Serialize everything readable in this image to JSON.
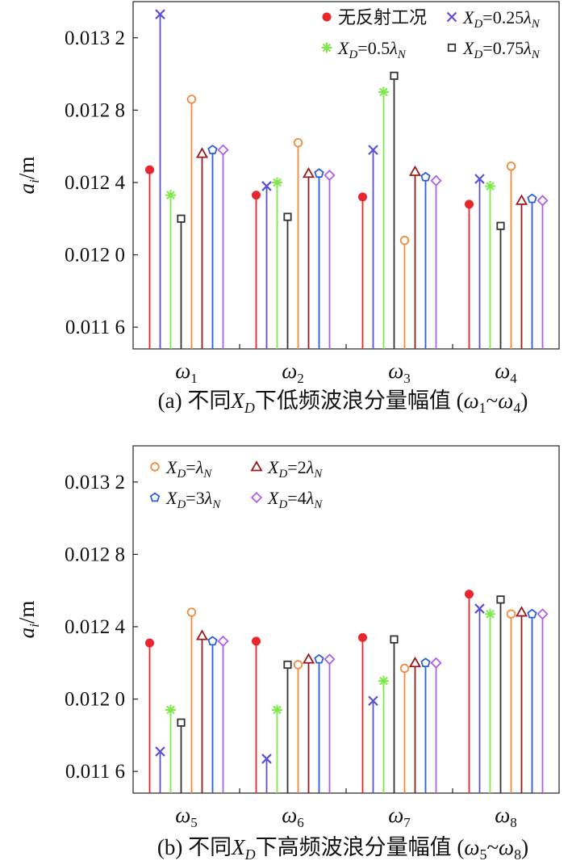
{
  "figure": {
    "chart_data": [
      {
        "type": "stem",
        "panel": "a",
        "caption": {
          "prefix": "(a) 不同",
          "xd_main": "X",
          "xd_sub": "D",
          "middle": "下低频波浪分量幅值 (",
          "w_first": "ω",
          "w_first_sub": "1",
          "tilde": "~",
          "w_last": "ω",
          "w_last_sub": "4",
          "suffix": ")"
        },
        "ylabel_main": "a",
        "ylabel_sub": "i",
        "ylabel_unit": "/m",
        "ylim": [
          0.01148,
          0.0134
        ],
        "y_ticks": [
          {
            "value": 0.0116,
            "label": "0.011 6"
          },
          {
            "value": 0.012,
            "label": "0.012 0"
          },
          {
            "value": 0.0124,
            "label": "0.012 4"
          },
          {
            "value": 0.0128,
            "label": "0.012 8"
          },
          {
            "value": 0.0132,
            "label": "0.013 2"
          }
        ],
        "categories": [
          {
            "main": "ω",
            "sub": "1"
          },
          {
            "main": "ω",
            "sub": "2"
          },
          {
            "main": "ω",
            "sub": "3"
          },
          {
            "main": "ω",
            "sub": "4"
          }
        ],
        "series": [
          {
            "key": "no_reflection",
            "values": [
              0.01247,
              0.01233,
              0.01232,
              0.01228
            ]
          },
          {
            "key": "xd_025",
            "values": [
              0.01333,
              0.01238,
              0.01258,
              0.01242
            ]
          },
          {
            "key": "xd_05",
            "values": [
              0.01233,
              0.0124,
              0.0129,
              0.01238
            ]
          },
          {
            "key": "xd_075",
            "values": [
              0.0122,
              0.01221,
              0.01299,
              0.01216
            ]
          },
          {
            "key": "xd_1",
            "values": [
              0.01286,
              0.01262,
              0.01208,
              0.01249
            ]
          },
          {
            "key": "xd_2",
            "values": [
              0.01256,
              0.01245,
              0.01246,
              0.0123
            ]
          },
          {
            "key": "xd_3",
            "values": [
              0.01258,
              0.01245,
              0.01243,
              0.01231
            ]
          },
          {
            "key": "xd_4",
            "values": [
              0.01258,
              0.01244,
              0.01241,
              0.0123
            ]
          }
        ],
        "legend": {
          "position": "top-right",
          "entries": [
            {
              "key": "no_reflection",
              "label": "无反射工况"
            },
            {
              "key": "xd_025",
              "label_main": "X",
              "label_sub": "D",
              "label_rest": "=0.25",
              "lambda": "λ",
              "lambda_sub": "N"
            },
            {
              "key": "xd_05",
              "label_main": "X",
              "label_sub": "D",
              "label_rest": "=0.5",
              "lambda": "λ",
              "lambda_sub": "N"
            },
            {
              "key": "xd_075",
              "label_main": "X",
              "label_sub": "D",
              "label_rest": "=0.75",
              "lambda": "λ",
              "lambda_sub": "N"
            }
          ]
        }
      },
      {
        "type": "stem",
        "panel": "b",
        "caption": {
          "prefix": "(b) 不同",
          "xd_main": "X",
          "xd_sub": "D",
          "middle": "下高频波浪分量幅值 (",
          "w_first": "ω",
          "w_first_sub": "5",
          "tilde": "~",
          "w_last": "ω",
          "w_last_sub": "8",
          "suffix": ")"
        },
        "ylabel_main": "a",
        "ylabel_sub": "i",
        "ylabel_unit": "/m",
        "ylim": [
          0.01148,
          0.0134
        ],
        "y_ticks": [
          {
            "value": 0.0116,
            "label": "0.011 6"
          },
          {
            "value": 0.012,
            "label": "0.012 0"
          },
          {
            "value": 0.0124,
            "label": "0.012 4"
          },
          {
            "value": 0.0128,
            "label": "0.012 8"
          },
          {
            "value": 0.0132,
            "label": "0.013 2"
          }
        ],
        "categories": [
          {
            "main": "ω",
            "sub": "5"
          },
          {
            "main": "ω",
            "sub": "6"
          },
          {
            "main": "ω",
            "sub": "7"
          },
          {
            "main": "ω",
            "sub": "8"
          }
        ],
        "series": [
          {
            "key": "no_reflection",
            "values": [
              0.01231,
              0.01232,
              0.01234,
              0.01258
            ]
          },
          {
            "key": "xd_025",
            "values": [
              0.01171,
              0.01167,
              0.01199,
              0.0125
            ]
          },
          {
            "key": "xd_05",
            "values": [
              0.01194,
              0.01194,
              0.0121,
              0.01247
            ]
          },
          {
            "key": "xd_075",
            "values": [
              0.01187,
              0.01219,
              0.01233,
              0.01255
            ]
          },
          {
            "key": "xd_1",
            "values": [
              0.01248,
              0.01219,
              0.01217,
              0.01247
            ]
          },
          {
            "key": "xd_2",
            "values": [
              0.01235,
              0.01222,
              0.0122,
              0.01248
            ]
          },
          {
            "key": "xd_3",
            "values": [
              0.01232,
              0.01222,
              0.0122,
              0.01247
            ]
          },
          {
            "key": "xd_4",
            "values": [
              0.01232,
              0.01222,
              0.0122,
              0.01247
            ]
          }
        ],
        "legend": {
          "position": "top-left",
          "entries": [
            {
              "key": "xd_1",
              "label_main": "X",
              "label_sub": "D",
              "label_rest": "=",
              "lambda": "λ",
              "lambda_sub": "N"
            },
            {
              "key": "xd_2",
              "label_main": "X",
              "label_sub": "D",
              "label_rest": "=2",
              "lambda": "λ",
              "lambda_sub": "N"
            },
            {
              "key": "xd_3",
              "label_main": "X",
              "label_sub": "D",
              "label_rest": "=3",
              "lambda": "λ",
              "lambda_sub": "N"
            },
            {
              "key": "xd_4",
              "label_main": "X",
              "label_sub": "D",
              "label_rest": "=4",
              "lambda": "λ",
              "lambda_sub": "N"
            }
          ]
        }
      }
    ],
    "series_styles": {
      "no_reflection": {
        "marker": "filled-circle",
        "color": "#e8262d"
      },
      "xd_025": {
        "marker": "cross",
        "color": "#5a4fd8"
      },
      "xd_05": {
        "marker": "asterisk",
        "color": "#7ee84a"
      },
      "xd_075": {
        "marker": "square",
        "color": "#333333"
      },
      "xd_1": {
        "marker": "circle",
        "color": "#f08a3c"
      },
      "xd_2": {
        "marker": "triangle",
        "color": "#9a1a1e"
      },
      "xd_3": {
        "marker": "pentagon",
        "color": "#2b5fd9"
      },
      "xd_4": {
        "marker": "diamond",
        "color": "#b25ee6"
      }
    }
  }
}
